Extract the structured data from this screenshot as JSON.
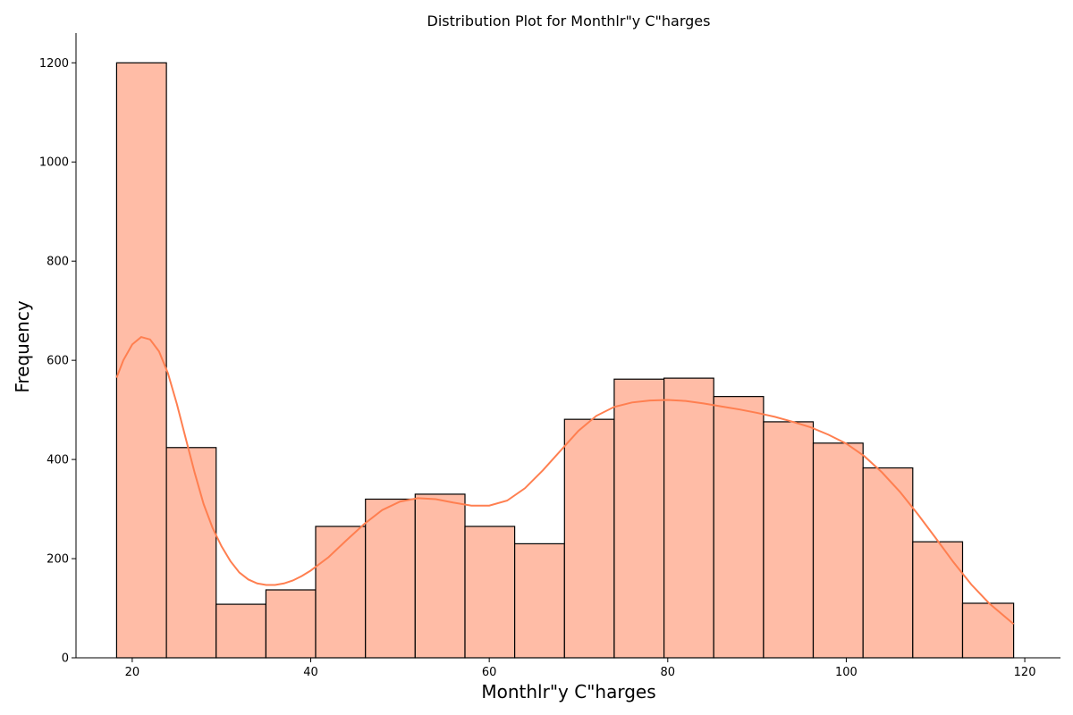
{
  "chart_data": {
    "type": "histogram",
    "title": "Distribution Plot for Monthlr\"y C\"harges",
    "xlabel": "Monthlr\"y C\"harges",
    "ylabel": "Frequency",
    "xlim": [
      13.7,
      124.0
    ],
    "ylim": [
      0,
      1260
    ],
    "x_ticks": [
      20,
      40,
      60,
      80,
      100,
      120
    ],
    "y_ticks": [
      0,
      200,
      400,
      600,
      800,
      1000,
      1200
    ],
    "bin_start": 18.25,
    "bin_width": 5.575,
    "bins": [
      {
        "x0": 18.25,
        "x1": 23.83,
        "count": 1200
      },
      {
        "x0": 23.83,
        "x1": 29.4,
        "count": 424
      },
      {
        "x0": 29.4,
        "x1": 34.98,
        "count": 108
      },
      {
        "x0": 34.98,
        "x1": 40.55,
        "count": 137
      },
      {
        "x0": 40.55,
        "x1": 46.13,
        "count": 265
      },
      {
        "x0": 46.13,
        "x1": 51.7,
        "count": 320
      },
      {
        "x0": 51.7,
        "x1": 57.28,
        "count": 330
      },
      {
        "x0": 57.28,
        "x1": 62.85,
        "count": 265
      },
      {
        "x0": 62.85,
        "x1": 68.43,
        "count": 230
      },
      {
        "x0": 68.43,
        "x1": 74.0,
        "count": 481
      },
      {
        "x0": 74.0,
        "x1": 79.58,
        "count": 562
      },
      {
        "x0": 79.58,
        "x1": 85.15,
        "count": 564
      },
      {
        "x0": 85.15,
        "x1": 90.73,
        "count": 527
      },
      {
        "x0": 90.73,
        "x1": 96.3,
        "count": 476
      },
      {
        "x0": 96.3,
        "x1": 101.88,
        "count": 433
      },
      {
        "x0": 101.88,
        "x1": 107.45,
        "count": 383
      },
      {
        "x0": 107.45,
        "x1": 113.03,
        "count": 234
      },
      {
        "x0": 113.03,
        "x1": 118.75,
        "count": 110
      }
    ],
    "kde": {
      "x": [
        18.25,
        19,
        20,
        21,
        22,
        23,
        24,
        25,
        26,
        27,
        28,
        29,
        30,
        31,
        32,
        33,
        34,
        35,
        36,
        37,
        38,
        39,
        40,
        42,
        44,
        46,
        48,
        50,
        52,
        54,
        56,
        58,
        60,
        62,
        64,
        66,
        68,
        70,
        72,
        74,
        76,
        78,
        80,
        82,
        84,
        86,
        88,
        90,
        92,
        94,
        96,
        98,
        100,
        102,
        104,
        106,
        108,
        110,
        112,
        114,
        116,
        118.75
      ],
      "y": [
        565,
        600,
        632,
        647,
        642,
        618,
        574,
        512,
        442,
        373,
        310,
        262,
        225,
        195,
        172,
        158,
        150,
        147,
        147,
        150,
        156,
        165,
        176,
        203,
        237,
        270,
        298,
        315,
        322,
        320,
        313,
        307,
        307,
        317,
        342,
        378,
        418,
        458,
        488,
        506,
        515,
        519,
        520,
        518,
        513,
        507,
        501,
        494,
        486,
        476,
        465,
        450,
        432,
        407,
        374,
        335,
        290,
        242,
        193,
        148,
        110,
        68
      ]
    },
    "bar_color": "#ffbca6",
    "edge_color": "#000000",
    "kde_color": "#ff7f50",
    "grid": false
  }
}
